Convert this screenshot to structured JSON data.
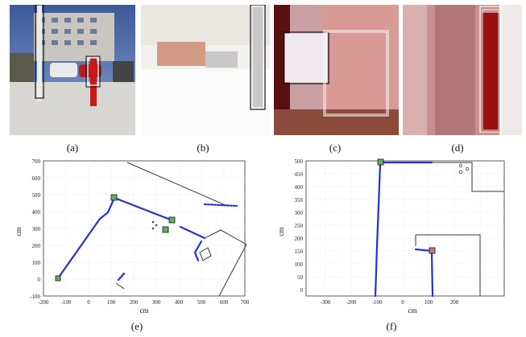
{
  "captions": {
    "a": "(a)",
    "b": "(b)",
    "c": "(c)",
    "d": "(d)",
    "e": "(e)",
    "f": "(f)"
  },
  "plot_e": {
    "xlabel": "cm",
    "ylabel": "cm",
    "xticks": [
      "-200",
      "-100",
      "0",
      "100",
      "200",
      "300",
      "400",
      "500",
      "600",
      "700"
    ],
    "yticks": [
      "700",
      "600",
      "500",
      "400",
      "300",
      "200",
      "100",
      "0",
      "-100"
    ]
  },
  "plot_f": {
    "xlabel": "cm",
    "ylabel": "cm",
    "xticks": [
      "-300",
      "-200",
      "-100",
      "0",
      "100",
      "200"
    ],
    "yticks": [
      "500",
      "450",
      "400",
      "350",
      "300",
      "250",
      "200",
      "150",
      "100",
      "50",
      "0"
    ]
  },
  "chart_data": [
    {
      "type": "scatter",
      "title": "",
      "xlabel": "cm",
      "ylabel": "cm",
      "xlim": [
        -200,
        700
      ],
      "ylim": [
        -100,
        700
      ],
      "grid": true,
      "series": [
        {
          "values": [
            [
              -130,
              20
            ],
            [
              -60,
              110
            ],
            [
              20,
              220
            ],
            [
              80,
              360
            ],
            [
              130,
              490
            ],
            [
              230,
              460
            ],
            [
              340,
              410
            ],
            [
              420,
              380
            ],
            [
              520,
              320
            ],
            [
              640,
              250
            ],
            [
              680,
              230
            ]
          ]
        },
        {
          "values": [
            [
              130,
              490
            ],
            [
              360,
              340
            ],
            [
              350,
              300
            ]
          ]
        }
      ]
    },
    {
      "type": "scatter",
      "title": "",
      "xlabel": "cm",
      "ylabel": "cm",
      "xlim": [
        -350,
        250
      ],
      "ylim": [
        0,
        520
      ],
      "grid": true,
      "series": [
        {
          "values": [
            [
              -120,
              0
            ],
            [
              -115,
              150
            ],
            [
              -110,
              300
            ],
            [
              -105,
              460
            ],
            [
              -100,
              510
            ],
            [
              -40,
              510
            ],
            [
              20,
              512
            ],
            [
              60,
              510
            ]
          ]
        },
        {
          "values": [
            [
              20,
              190
            ],
            [
              55,
              185
            ],
            [
              55,
              100
            ],
            [
              58,
              0
            ]
          ]
        }
      ]
    }
  ]
}
